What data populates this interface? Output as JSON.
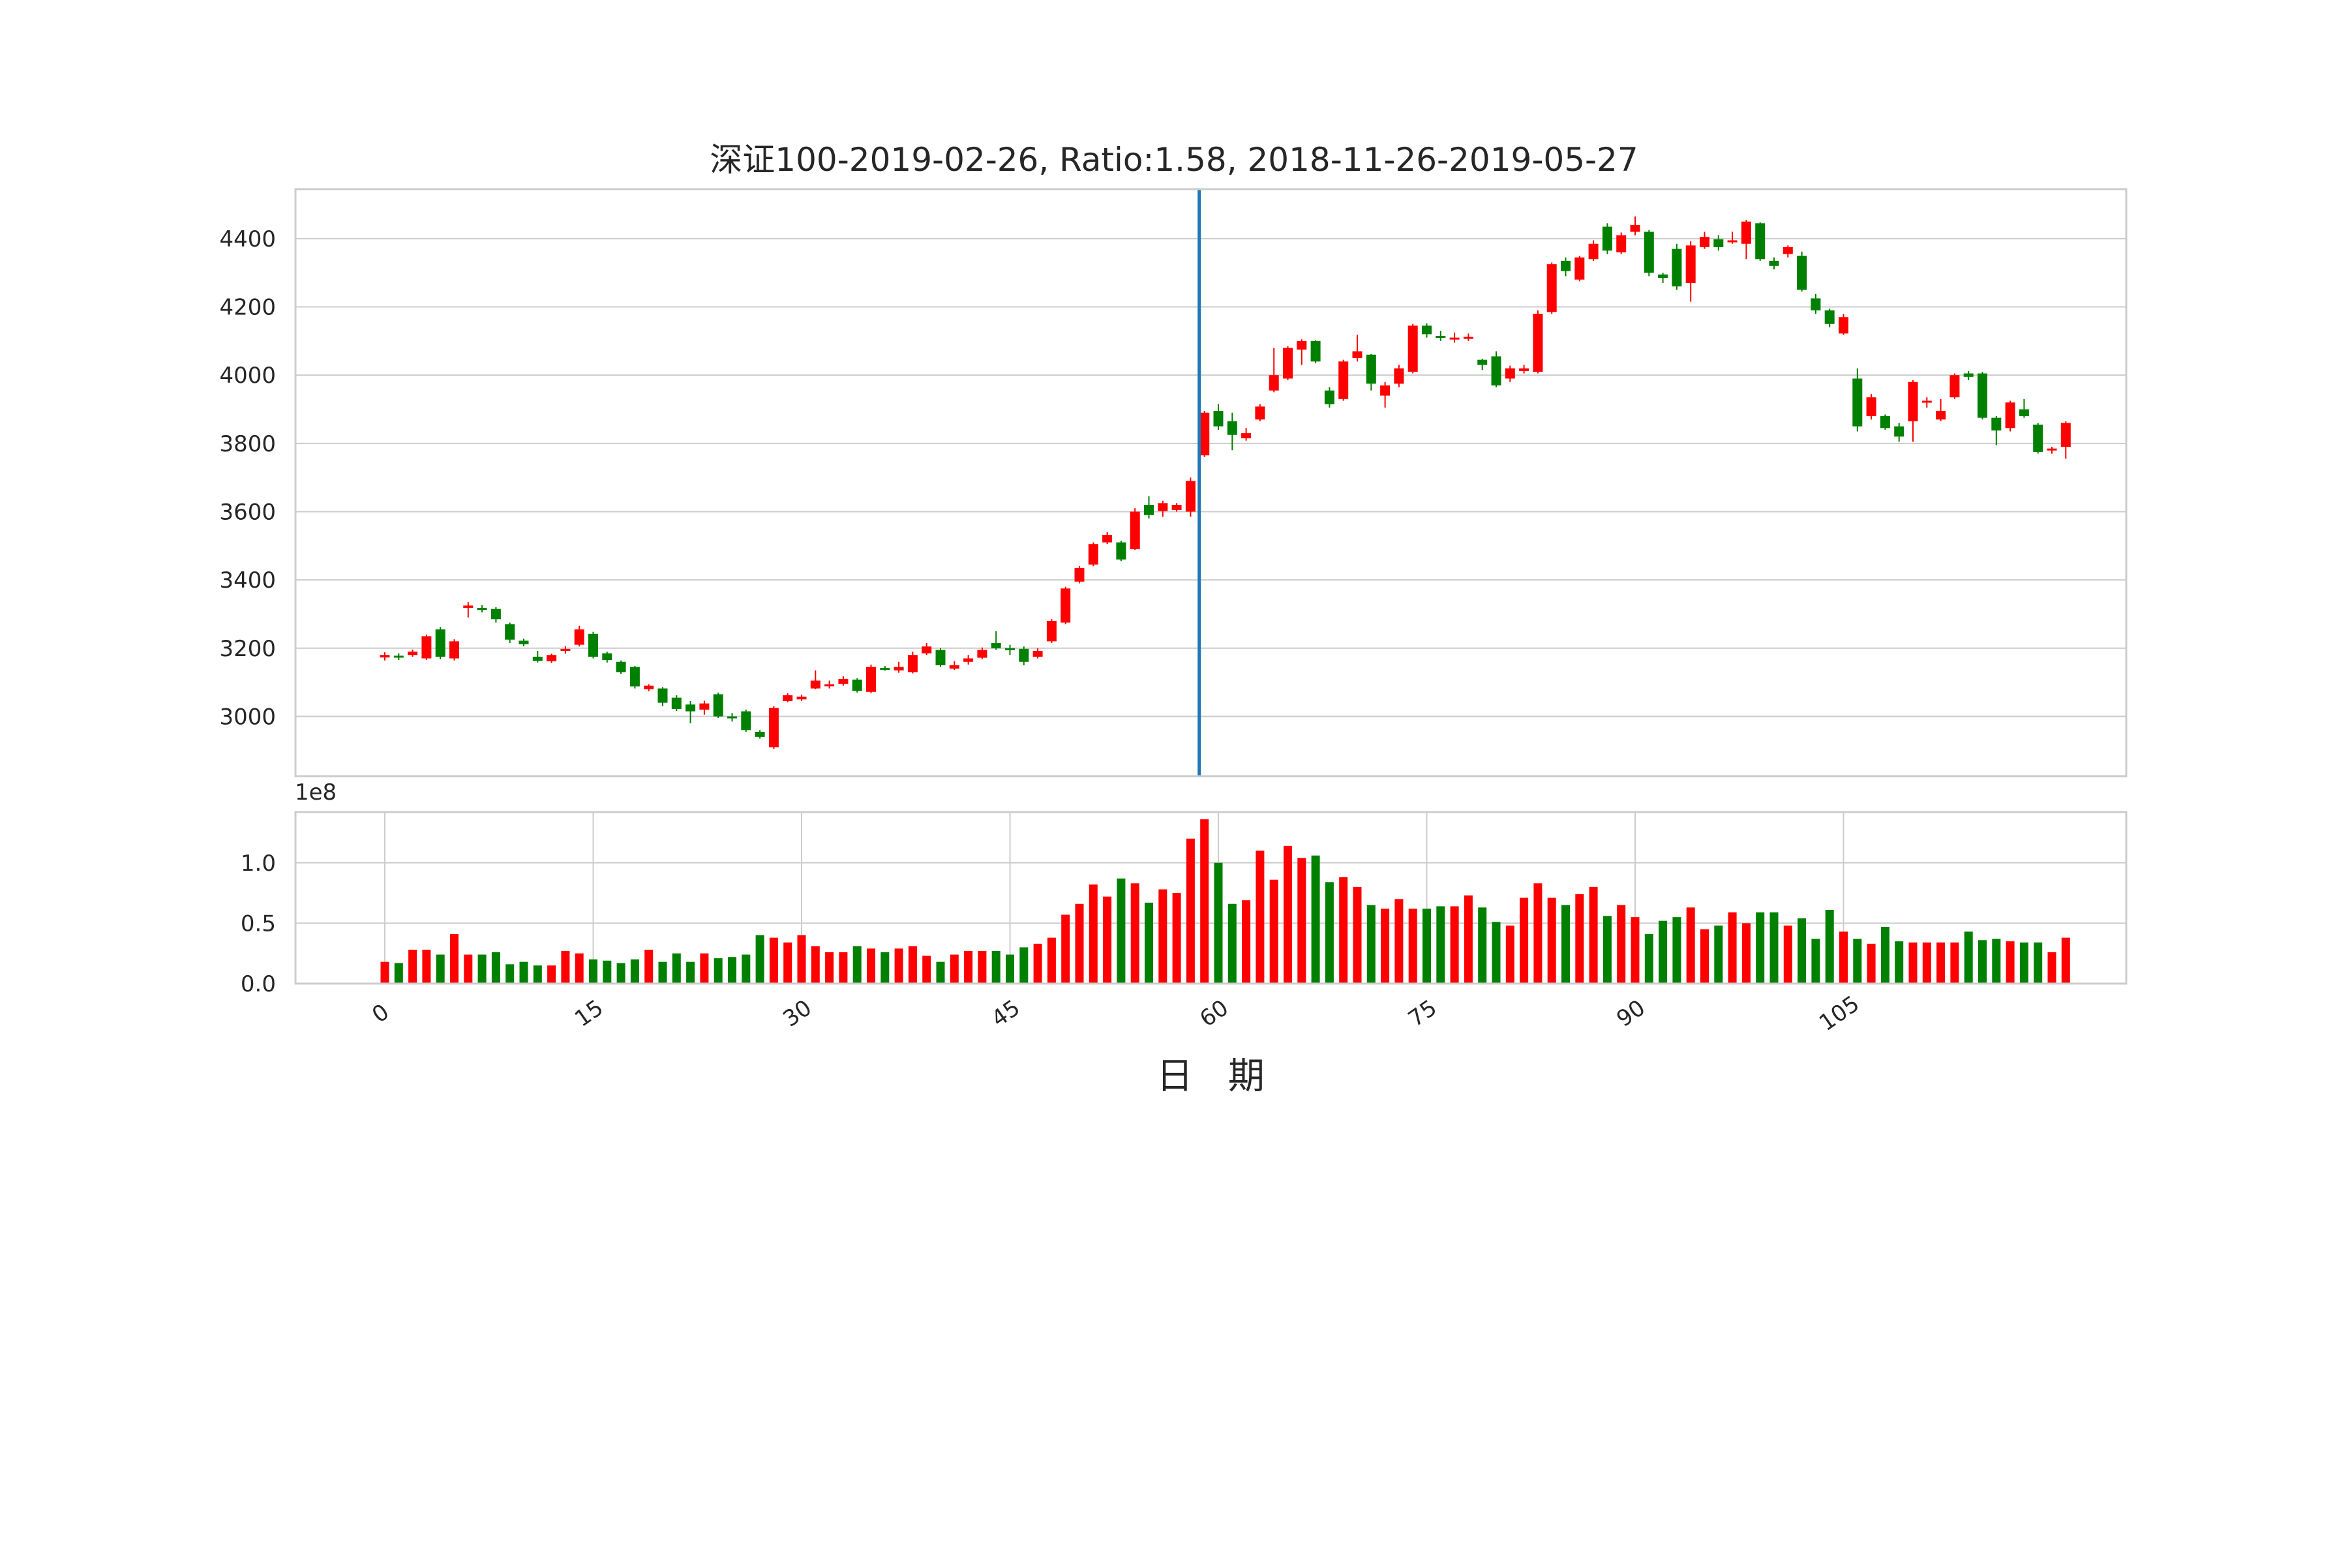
{
  "chart_data": [
    {
      "type": "candlestick",
      "title": "深证100-2019-02-26, Ratio:1.58, 2018-11-26-2019-05-27",
      "xlabel": "日 期",
      "ylabel": "",
      "ylim": [
        2825,
        4545
      ],
      "yticks": [
        3000,
        3200,
        3400,
        3600,
        3800,
        4000,
        4200,
        4400
      ],
      "marker_index": 59,
      "grid": true,
      "colors": {
        "up": "#ff0000",
        "down": "#008000",
        "marker": "#1f77b4",
        "grid": "#cccccc",
        "frame": "#cccccc"
      },
      "candles": [
        [
          3173,
          3180,
          3188,
          3164
        ],
        [
          3178,
          3174,
          3185,
          3165
        ],
        [
          3180,
          3190,
          3196,
          3175
        ],
        [
          3170,
          3235,
          3240,
          3165
        ],
        [
          3255,
          3175,
          3262,
          3168
        ],
        [
          3170,
          3220,
          3226,
          3164
        ],
        [
          3318,
          3325,
          3335,
          3290
        ],
        [
          3318,
          3312,
          3326,
          3305
        ],
        [
          3315,
          3285,
          3320,
          3275
        ],
        [
          3270,
          3225,
          3275,
          3215
        ],
        [
          3222,
          3212,
          3228,
          3206
        ],
        [
          3175,
          3163,
          3192,
          3158
        ],
        [
          3162,
          3180,
          3184,
          3157
        ],
        [
          3192,
          3198,
          3206,
          3184
        ],
        [
          3210,
          3255,
          3265,
          3205
        ],
        [
          3242,
          3175,
          3248,
          3170
        ],
        [
          3185,
          3165,
          3190,
          3158
        ],
        [
          3160,
          3130,
          3164,
          3125
        ],
        [
          3145,
          3088,
          3148,
          3082
        ],
        [
          3080,
          3090,
          3094,
          3074
        ],
        [
          3082,
          3040,
          3086,
          3030
        ],
        [
          3055,
          3022,
          3062,
          3016
        ],
        [
          3035,
          3015,
          3045,
          2980
        ],
        [
          3020,
          3038,
          3046,
          3005
        ],
        [
          3065,
          3000,
          3070,
          2995
        ],
        [
          3000,
          2995,
          3010,
          2985
        ],
        [
          3015,
          2960,
          3020,
          2955
        ],
        [
          2955,
          2940,
          2960,
          2935
        ],
        [
          2910,
          3025,
          3030,
          2905
        ],
        [
          3045,
          3062,
          3068,
          3042
        ],
        [
          3050,
          3058,
          3064,
          3045
        ],
        [
          3082,
          3105,
          3135,
          3080
        ],
        [
          3090,
          3094,
          3105,
          3082
        ],
        [
          3095,
          3110,
          3118,
          3090
        ],
        [
          3108,
          3075,
          3112,
          3070
        ],
        [
          3072,
          3145,
          3152,
          3068
        ],
        [
          3142,
          3138,
          3148,
          3134
        ],
        [
          3135,
          3145,
          3160,
          3128
        ],
        [
          3130,
          3180,
          3190,
          3126
        ],
        [
          3185,
          3205,
          3215,
          3180
        ],
        [
          3195,
          3150,
          3200,
          3145
        ],
        [
          3140,
          3150,
          3162,
          3136
        ],
        [
          3160,
          3170,
          3180,
          3152
        ],
        [
          3172,
          3195,
          3202,
          3168
        ],
        [
          3215,
          3200,
          3250,
          3195
        ],
        [
          3200,
          3195,
          3210,
          3180
        ],
        [
          3198,
          3160,
          3205,
          3150
        ],
        [
          3175,
          3192,
          3200,
          3170
        ],
        [
          3220,
          3280,
          3285,
          3215
        ],
        [
          3275,
          3375,
          3380,
          3270
        ],
        [
          3395,
          3435,
          3440,
          3390
        ],
        [
          3445,
          3505,
          3510,
          3440
        ],
        [
          3510,
          3532,
          3540,
          3505
        ],
        [
          3510,
          3460,
          3515,
          3455
        ],
        [
          3490,
          3600,
          3610,
          3488
        ],
        [
          3620,
          3590,
          3645,
          3580
        ],
        [
          3602,
          3625,
          3632,
          3585
        ],
        [
          3605,
          3620,
          3625,
          3600
        ],
        [
          3600,
          3690,
          3700,
          3585
        ],
        [
          3765,
          3890,
          3895,
          3760
        ],
        [
          3895,
          3850,
          3915,
          3840
        ],
        [
          3865,
          3825,
          3890,
          3780
        ],
        [
          3815,
          3830,
          3845,
          3808
        ],
        [
          3870,
          3908,
          3915,
          3865
        ],
        [
          3955,
          4000,
          4080,
          3950
        ],
        [
          3990,
          4080,
          4085,
          3985
        ],
        [
          4075,
          4100,
          4105,
          4030
        ],
        [
          4100,
          4040,
          4102,
          4035
        ],
        [
          3955,
          3915,
          3965,
          3905
        ],
        [
          3930,
          4040,
          4045,
          3925
        ],
        [
          4050,
          4070,
          4118,
          4040
        ],
        [
          4060,
          3975,
          4062,
          3955
        ],
        [
          3940,
          3970,
          3980,
          3905
        ],
        [
          3975,
          4020,
          4030,
          3965
        ],
        [
          4010,
          4145,
          4150,
          4005
        ],
        [
          4145,
          4120,
          4152,
          4110
        ],
        [
          4115,
          4110,
          4130,
          4100
        ],
        [
          4105,
          4110,
          4125,
          4095
        ],
        [
          4110,
          4112,
          4122,
          4100
        ],
        [
          4045,
          4030,
          4048,
          4015
        ],
        [
          4055,
          3970,
          4070,
          3965
        ],
        [
          3990,
          4020,
          4028,
          3980
        ],
        [
          4012,
          4020,
          4030,
          4005
        ],
        [
          4010,
          4180,
          4190,
          4005
        ],
        [
          4185,
          4325,
          4330,
          4180
        ],
        [
          4335,
          4305,
          4345,
          4290
        ],
        [
          4280,
          4345,
          4350,
          4275
        ],
        [
          4340,
          4385,
          4395,
          4335
        ],
        [
          4435,
          4365,
          4445,
          4355
        ],
        [
          4360,
          4410,
          4418,
          4355
        ],
        [
          4420,
          4440,
          4465,
          4410
        ],
        [
          4420,
          4300,
          4425,
          4290
        ],
        [
          4295,
          4285,
          4300,
          4270
        ],
        [
          4370,
          4260,
          4385,
          4250
        ],
        [
          4270,
          4380,
          4392,
          4215
        ],
        [
          4375,
          4405,
          4420,
          4370
        ],
        [
          4398,
          4375,
          4410,
          4365
        ],
        [
          4390,
          4395,
          4420,
          4385
        ],
        [
          4385,
          4450,
          4455,
          4340
        ],
        [
          4445,
          4340,
          4448,
          4335
        ],
        [
          4335,
          4320,
          4345,
          4310
        ],
        [
          4355,
          4375,
          4380,
          4345
        ],
        [
          4350,
          4250,
          4362,
          4245
        ],
        [
          4225,
          4190,
          4238,
          4180
        ],
        [
          4190,
          4150,
          4195,
          4140
        ],
        [
          4122,
          4170,
          4180,
          4118
        ],
        [
          3990,
          3850,
          4020,
          3835
        ],
        [
          3880,
          3935,
          3945,
          3870
        ],
        [
          3880,
          3845,
          3885,
          3840
        ],
        [
          3850,
          3820,
          3860,
          3805
        ],
        [
          3865,
          3980,
          3985,
          3805
        ],
        [
          3920,
          3925,
          3935,
          3905
        ],
        [
          3870,
          3895,
          3930,
          3865
        ],
        [
          3935,
          4000,
          4005,
          3930
        ],
        [
          4005,
          3995,
          4012,
          3985
        ],
        [
          4005,
          3875,
          4010,
          3870
        ],
        [
          3875,
          3838,
          3880,
          3795
        ],
        [
          3845,
          3920,
          3925,
          3835
        ],
        [
          3900,
          3880,
          3930,
          3875
        ],
        [
          3855,
          3775,
          3860,
          3770
        ],
        [
          3780,
          3785,
          3790,
          3770
        ],
        [
          3790,
          3860,
          3865,
          3755
        ]
      ],
      "x_tick_values": [
        0,
        15,
        30,
        45,
        60,
        75,
        90,
        105
      ]
    },
    {
      "type": "bar",
      "title": "",
      "ylim": [
        0,
        1.42
      ],
      "yticks": [
        0.0,
        0.5,
        1.0
      ],
      "ytick_labels": [
        "0.0",
        "0.5",
        "1.0"
      ],
      "offset_label": "1e8",
      "x_tick_labels": [
        "0",
        "15",
        "30",
        "45",
        "60",
        "75",
        "90",
        "105"
      ],
      "x_tick_values": [
        0,
        15,
        30,
        45,
        60,
        75,
        90,
        105
      ],
      "volume": [
        0.18,
        0.17,
        0.28,
        0.28,
        0.24,
        0.41,
        0.24,
        0.24,
        0.26,
        0.16,
        0.18,
        0.15,
        0.15,
        0.27,
        0.25,
        0.2,
        0.19,
        0.17,
        0.2,
        0.28,
        0.18,
        0.25,
        0.18,
        0.25,
        0.21,
        0.22,
        0.24,
        0.4,
        0.38,
        0.34,
        0.4,
        0.31,
        0.26,
        0.26,
        0.31,
        0.29,
        0.26,
        0.29,
        0.31,
        0.23,
        0.18,
        0.24,
        0.27,
        0.27,
        0.27,
        0.24,
        0.3,
        0.33,
        0.38,
        0.57,
        0.66,
        0.82,
        0.72,
        0.87,
        0.83,
        0.67,
        0.78,
        0.75,
        1.2,
        1.36,
        1.0,
        0.66,
        0.69,
        1.1,
        0.86,
        1.14,
        1.04,
        1.06,
        0.84,
        0.88,
        0.8,
        0.65,
        0.62,
        0.7,
        0.62,
        0.62,
        0.64,
        0.64,
        0.73,
        0.63,
        0.51,
        0.48,
        0.71,
        0.83,
        0.71,
        0.65,
        0.74,
        0.8,
        0.56,
        0.65,
        0.55,
        0.41,
        0.52,
        0.55,
        0.63,
        0.45,
        0.48,
        0.59,
        0.5,
        0.59,
        0.59,
        0.48,
        0.54,
        0.37,
        0.61,
        0.43,
        0.37,
        0.33,
        0.47,
        0.35,
        0.34,
        0.34,
        0.34,
        0.34,
        0.43,
        0.36,
        0.37,
        0.35,
        0.34,
        0.34,
        0.26,
        0.38
      ]
    }
  ]
}
